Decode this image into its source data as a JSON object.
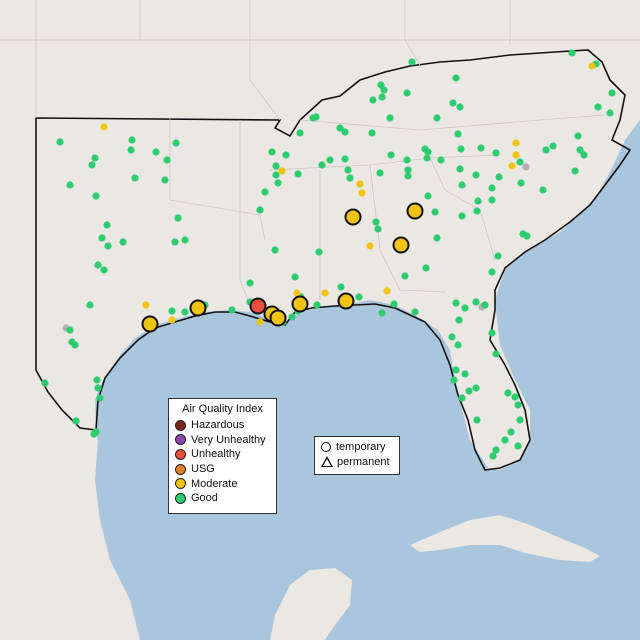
{
  "colors": {
    "water": "#a9c6dd",
    "land": "#e8e4df",
    "land_other": "#eeebe7",
    "region_border": "#111111",
    "state_border": "#c9c5c0",
    "good": "#2ecc71",
    "moderate": "#f1c40f",
    "usg": "#e67e22",
    "unhealthy": "#e74c3c",
    "very_unhealthy": "#8e44ad",
    "hazardous": "#7b241c",
    "gray": "#b0b0b0"
  },
  "legend": {
    "title": "Air Quality Index",
    "items": [
      {
        "label": "Hazardous",
        "color": "#7b241c"
      },
      {
        "label": "Very Unhealthy",
        "color": "#8e44ad"
      },
      {
        "label": "Unhealthy",
        "color": "#e74c3c"
      },
      {
        "label": "USG",
        "color": "#e67e22"
      },
      {
        "label": "Moderate",
        "color": "#f1c40f"
      },
      {
        "label": "Good",
        "color": "#2ecc71"
      }
    ]
  },
  "type_legend": {
    "temporary": "temporary",
    "permanent": "permanent"
  }
}
